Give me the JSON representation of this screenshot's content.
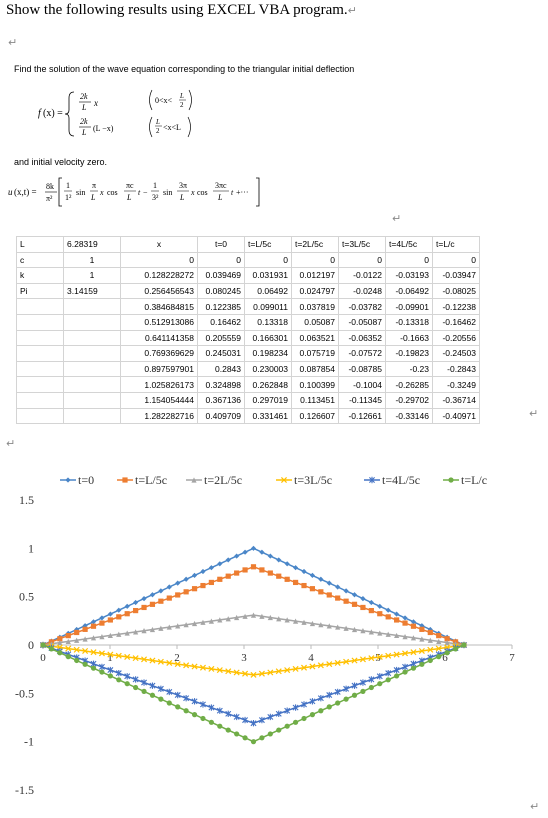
{
  "instruction": "Show the following results using EXCEL VBA program.",
  "problem": {
    "intro": "Find the solution of the wave equation corresponding to the triangular initial deflection",
    "fx_label": "f(x) =",
    "case1_expr": "2k/L x",
    "case1_cond": "0 < x < L/2",
    "case2_expr": "2k/L (L − x)",
    "case2_cond": "L/2 < x < L",
    "velocity_text": "and initial velocity zero.",
    "solution": "u(x,t) = 8k/π² [ 1/1² sin(π/L x) cos(πc/L t) − 1/3² sin(3π/L x) cos(3πc/L t) + ··· ]"
  },
  "params": [
    {
      "name": "L",
      "value": "6.28319"
    },
    {
      "name": "c",
      "value": "1"
    },
    {
      "name": "k",
      "value": "1"
    },
    {
      "name": "Pi",
      "value": "3.14159"
    }
  ],
  "table": {
    "headers": [
      "x",
      "t=0",
      "t=L/5c",
      "t=2L/5c",
      "t=3L/5c",
      "t=4L/5c",
      "t=L/c"
    ],
    "rows": [
      [
        "0",
        "0",
        "0",
        "0",
        "0",
        "0",
        "0"
      ],
      [
        "0.128228272",
        "0.039469",
        "0.031931",
        "0.012197",
        "-0.0122",
        "-0.03193",
        "-0.03947"
      ],
      [
        "0.256456543",
        "0.080245",
        "0.06492",
        "0.024797",
        "-0.0248",
        "-0.06492",
        "-0.08025"
      ],
      [
        "0.384684815",
        "0.122385",
        "0.099011",
        "0.037819",
        "-0.03782",
        "-0.09901",
        "-0.12238"
      ],
      [
        "0.512913086",
        "0.16462",
        "0.13318",
        "0.05087",
        "-0.05087",
        "-0.13318",
        "-0.16462"
      ],
      [
        "0.641141358",
        "0.205559",
        "0.166301",
        "0.063521",
        "-0.06352",
        "-0.1663",
        "-0.20556"
      ],
      [
        "0.769369629",
        "0.245031",
        "0.198234",
        "0.075719",
        "-0.07572",
        "-0.19823",
        "-0.24503"
      ],
      [
        "0.897597901",
        "0.2843",
        "0.230003",
        "0.087854",
        "-0.08785",
        "-0.23",
        "-0.2843"
      ],
      [
        "1.025826173",
        "0.324898",
        "0.262848",
        "0.100399",
        "-0.1004",
        "-0.26285",
        "-0.3249"
      ],
      [
        "1.154054444",
        "0.367136",
        "0.297019",
        "0.113451",
        "-0.11345",
        "-0.29702",
        "-0.36714"
      ],
      [
        "1.282282716",
        "0.409709",
        "0.331461",
        "0.126607",
        "-0.12661",
        "-0.33146",
        "-0.40971"
      ]
    ]
  },
  "chart_data": {
    "type": "line",
    "xlim": [
      0,
      7
    ],
    "ylim": [
      -1.5,
      1.5
    ],
    "x_ticks": [
      0,
      1,
      2,
      3,
      4,
      5,
      6,
      7
    ],
    "y_ticks": [
      1.5,
      1,
      0.5,
      0,
      -0.5,
      -1,
      -1.5
    ],
    "y_tick_labels": [
      "1.5",
      "1",
      "0.5",
      "0",
      "-0.5",
      "-1",
      "-1.5"
    ],
    "legend_position": "top",
    "grid": false,
    "x_domain": [
      0,
      6.28319
    ],
    "points_per_series": 50,
    "series": [
      {
        "name": "t=0",
        "peak": 1.0,
        "color": "#4a86c8",
        "marker": "diamond"
      },
      {
        "name": "t=L/5c",
        "peak": 0.809,
        "color": "#ed7d31",
        "marker": "square"
      },
      {
        "name": "t=2L/5c",
        "peak": 0.309,
        "color": "#a5a5a5",
        "marker": "triangle"
      },
      {
        "name": "t=3L/5c",
        "peak": -0.309,
        "color": "#ffc000",
        "marker": "x"
      },
      {
        "name": "t=4L/5c",
        "peak": -0.809,
        "color": "#4472c4",
        "marker": "star"
      },
      {
        "name": "t=L/c",
        "peak": -1.0,
        "color": "#70ad47",
        "marker": "circle"
      }
    ]
  }
}
